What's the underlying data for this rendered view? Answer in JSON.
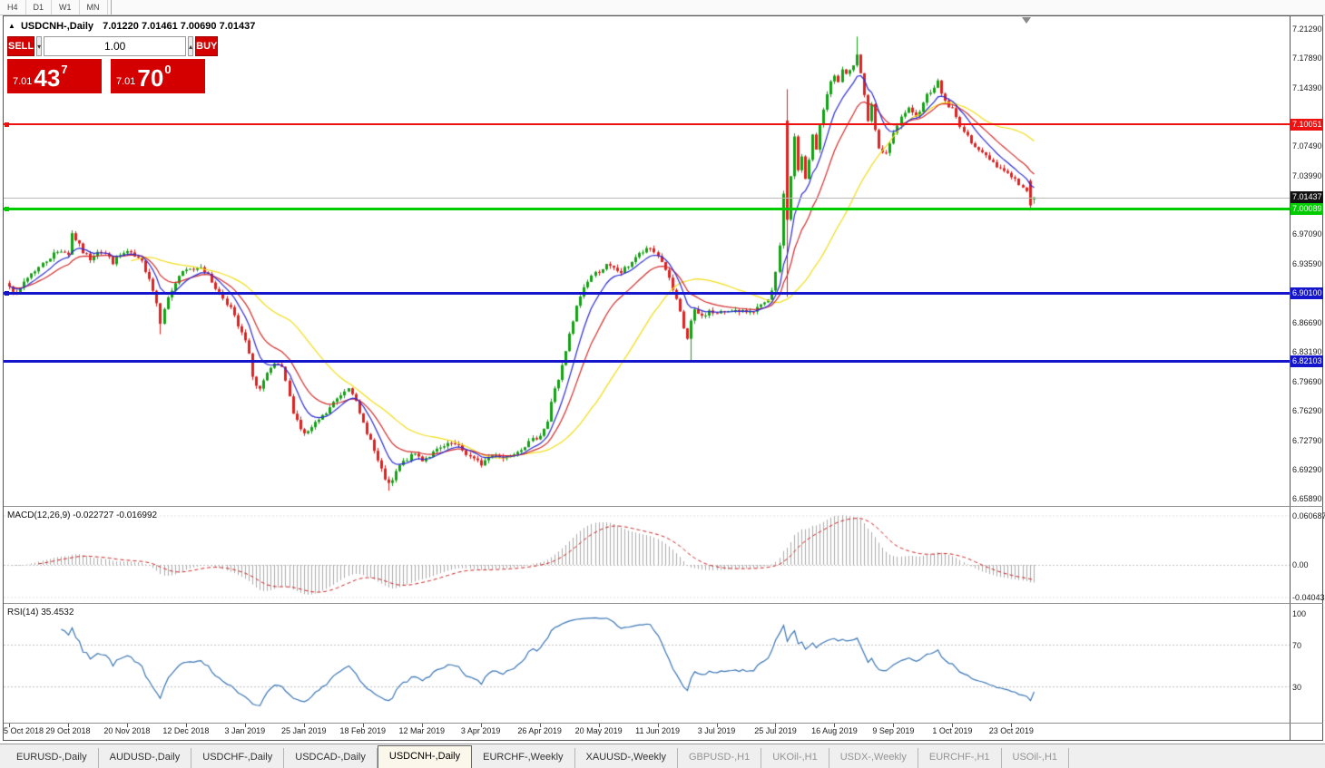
{
  "toolbar": {
    "timeframes": [
      "H4",
      "D1",
      "W1",
      "MN"
    ]
  },
  "chart_header": {
    "marker": "▲",
    "title": "USDCNH-,Daily",
    "ohlc": "7.01220 7.01461 7.00690 7.01437"
  },
  "icons": {
    "spin_up": "▴",
    "spin_down": "▾"
  },
  "trade_panel": {
    "sell_label": "SELL",
    "buy_label": "BUY",
    "volume": "1.00",
    "bid": {
      "small": "7.01",
      "big": "43",
      "sup": "7"
    },
    "ask": {
      "small": "7.01",
      "big": "70",
      "sup": "0"
    },
    "panel_color": "#d40000"
  },
  "price_axis": {
    "labels": [
      "7.21290",
      "7.17890",
      "7.14390",
      "7.07490",
      "7.03990",
      "6.97090",
      "6.93590",
      "6.86690",
      "6.83190",
      "6.79690",
      "6.76290",
      "6.72790",
      "6.69290",
      "6.65890"
    ],
    "tags": [
      {
        "text": "7.10051",
        "price": 7.10051,
        "bg": "#ee1111",
        "fg": "#ffffff"
      },
      {
        "text": "7.01437",
        "price": 7.01437,
        "bg": "#111111",
        "fg": "#ffffff"
      },
      {
        "text": "7.00089",
        "price": 7.00089,
        "bg": "#00cc00",
        "fg": "#ffffff"
      },
      {
        "text": "6.90100",
        "price": 6.901,
        "bg": "#1515cc",
        "fg": "#ffffff"
      },
      {
        "text": "6.82103",
        "price": 6.82103,
        "bg": "#1515cc",
        "fg": "#ffffff"
      }
    ]
  },
  "hlines": [
    {
      "price": 7.10051,
      "color": "#ee1111",
      "thickness": 2,
      "handle": true
    },
    {
      "price": 7.00089,
      "color": "#00cc00",
      "thickness": 3,
      "handle": true
    },
    {
      "price": 6.901,
      "color": "#1515cc",
      "thickness": 3,
      "handle": true
    },
    {
      "price": 6.82103,
      "color": "#1515cc",
      "thickness": 3,
      "handle": false
    }
  ],
  "bid_line": {
    "price": 7.01437,
    "color": "#b9b9b9"
  },
  "time_axis": {
    "labels": [
      "5 Oct 2018",
      "29 Oct 2018",
      "20 Nov 2018",
      "12 Dec 2018",
      "3 Jan 2019",
      "25 Jan 2019",
      "18 Feb 2019",
      "12 Mar 2019",
      "3 Apr 2019",
      "26 Apr 2019",
      "20 May 2019",
      "11 Jun 2019",
      "3 Jul 2019",
      "25 Jul 2019",
      "16 Aug 2019",
      "9 Sep 2019",
      "1 Oct 2019",
      "23 Oct 2019"
    ]
  },
  "macd_panel": {
    "label": "MACD(12,26,9) -0.022727 -0.016992",
    "axis_labels": [
      "0.060687",
      "0.00",
      "-0.040435"
    ],
    "max": 0.060687,
    "min": -0.040435
  },
  "rsi_panel": {
    "label": "RSI(14) 35.4532",
    "axis_labels": [
      "100",
      "70",
      "30"
    ],
    "levels": [
      70,
      30
    ],
    "value": 35.4532
  },
  "tabs": [
    {
      "label": "EURUSD-,Daily",
      "active": false,
      "muted": false
    },
    {
      "label": "AUDUSD-,Daily",
      "active": false,
      "muted": false
    },
    {
      "label": "USDCHF-,Daily",
      "active": false,
      "muted": false
    },
    {
      "label": "USDCAD-,Daily",
      "active": false,
      "muted": false
    },
    {
      "label": "USDCNH-,Daily",
      "active": true,
      "muted": false
    },
    {
      "label": "EURCHF-,Weekly",
      "active": false,
      "muted": false
    },
    {
      "label": "XAUUSD-,Weekly",
      "active": false,
      "muted": false
    },
    {
      "label": "GBPUSD-,H1",
      "active": false,
      "muted": true
    },
    {
      "label": "UKOil-,H1",
      "active": false,
      "muted": true
    },
    {
      "label": "USDX-,Weekly",
      "active": false,
      "muted": true
    },
    {
      "label": "EURCHF-,H1",
      "active": false,
      "muted": true
    },
    {
      "label": "USOil-,H1",
      "active": false,
      "muted": true
    }
  ],
  "chart_data": {
    "type": "candlestick",
    "symbol": "USDCNH-",
    "timeframe": "Daily",
    "current_ohlc": {
      "open": 7.0122,
      "high": 7.01461,
      "low": 7.0069,
      "close": 7.01437
    },
    "y_axis": {
      "top": 7.2258,
      "bottom": 6.6515
    },
    "x_axis_start": "5 Oct 2018",
    "x_axis_end": "23 Oct 2019",
    "num_candles": 279,
    "colors": {
      "up": "#16a016",
      "down": "#dd2222",
      "ma_fast": "#2b2bd5",
      "ma_mid": "#d52b2b",
      "ma_slow": "#f2de18",
      "macd_hist": "#ababab",
      "macd_signal": "#cc2222",
      "rsi": "#3b76b5",
      "level_red": "#ee1111",
      "level_green": "#00cc00",
      "level_blue": "#1515cc"
    },
    "moving_averages": [
      {
        "type": "ema",
        "period": 8
      },
      {
        "type": "ema",
        "period": 16
      },
      {
        "type": "sma",
        "period": 34
      }
    ],
    "indicators": {
      "macd": {
        "params": [
          12,
          26,
          9
        ],
        "current_main": -0.022727,
        "current_signal": -0.016992
      },
      "rsi": {
        "period": 14,
        "current": 35.4532
      }
    },
    "support_resistance_levels": [
      7.10051,
      7.00089,
      6.901,
      6.82103
    ],
    "noise_amplitude": 0.0055,
    "seed": 7,
    "close_anchors": [
      [
        0,
        6.912
      ],
      [
        2,
        6.898
      ],
      [
        4,
        6.915
      ],
      [
        6,
        6.925
      ],
      [
        8,
        6.932
      ],
      [
        10,
        6.94
      ],
      [
        12,
        6.948
      ],
      [
        14,
        6.952
      ],
      [
        16,
        6.948
      ],
      [
        17,
        6.972
      ],
      [
        18,
        6.965
      ],
      [
        20,
        6.95
      ],
      [
        22,
        6.942
      ],
      [
        24,
        6.952
      ],
      [
        26,
        6.948
      ],
      [
        28,
        6.938
      ],
      [
        30,
        6.946
      ],
      [
        32,
        6.95
      ],
      [
        34,
        6.944
      ],
      [
        36,
        6.938
      ],
      [
        38,
        6.92
      ],
      [
        40,
        6.89
      ],
      [
        41,
        6.868
      ],
      [
        42,
        6.885
      ],
      [
        44,
        6.905
      ],
      [
        46,
        6.922
      ],
      [
        48,
        6.928
      ],
      [
        50,
        6.93
      ],
      [
        52,
        6.934
      ],
      [
        54,
        6.922
      ],
      [
        56,
        6.908
      ],
      [
        58,
        6.896
      ],
      [
        60,
        6.884
      ],
      [
        62,
        6.862
      ],
      [
        64,
        6.845
      ],
      [
        65,
        6.828
      ],
      [
        66,
        6.805
      ],
      [
        67,
        6.792
      ],
      [
        68,
        6.788
      ],
      [
        70,
        6.805
      ],
      [
        72,
        6.818
      ],
      [
        74,
        6.812
      ],
      [
        75,
        6.798
      ],
      [
        76,
        6.778
      ],
      [
        77,
        6.762
      ],
      [
        78,
        6.752
      ],
      [
        79,
        6.742
      ],
      [
        80,
        6.735
      ],
      [
        82,
        6.742
      ],
      [
        84,
        6.752
      ],
      [
        86,
        6.76
      ],
      [
        88,
        6.772
      ],
      [
        90,
        6.782
      ],
      [
        92,
        6.792
      ],
      [
        93,
        6.785
      ],
      [
        94,
        6.772
      ],
      [
        95,
        6.758
      ],
      [
        96,
        6.748
      ],
      [
        97,
        6.738
      ],
      [
        98,
        6.728
      ],
      [
        99,
        6.715
      ],
      [
        100,
        6.703
      ],
      [
        101,
        6.692
      ],
      [
        102,
        6.683
      ],
      [
        103,
        6.675
      ],
      [
        104,
        6.68
      ],
      [
        105,
        6.69
      ],
      [
        106,
        6.698
      ],
      [
        108,
        6.706
      ],
      [
        110,
        6.712
      ],
      [
        112,
        6.705
      ],
      [
        114,
        6.71
      ],
      [
        116,
        6.716
      ],
      [
        118,
        6.72
      ],
      [
        120,
        6.724
      ],
      [
        122,
        6.72
      ],
      [
        124,
        6.712
      ],
      [
        126,
        6.705
      ],
      [
        128,
        6.7
      ],
      [
        130,
        6.708
      ],
      [
        132,
        6.712
      ],
      [
        134,
        6.707
      ],
      [
        136,
        6.712
      ],
      [
        138,
        6.716
      ],
      [
        140,
        6.722
      ],
      [
        142,
        6.728
      ],
      [
        144,
        6.735
      ],
      [
        145,
        6.742
      ],
      [
        146,
        6.75
      ],
      [
        147,
        6.772
      ],
      [
        148,
        6.79
      ],
      [
        149,
        6.8
      ],
      [
        150,
        6.815
      ],
      [
        151,
        6.832
      ],
      [
        152,
        6.852
      ],
      [
        153,
        6.868
      ],
      [
        154,
        6.885
      ],
      [
        155,
        6.898
      ],
      [
        156,
        6.908
      ],
      [
        157,
        6.916
      ],
      [
        158,
        6.922
      ],
      [
        160,
        6.928
      ],
      [
        162,
        6.934
      ],
      [
        164,
        6.93
      ],
      [
        166,
        6.926
      ],
      [
        168,
        6.934
      ],
      [
        170,
        6.944
      ],
      [
        172,
        6.95
      ],
      [
        174,
        6.954
      ],
      [
        176,
        6.946
      ],
      [
        178,
        6.93
      ],
      [
        180,
        6.905
      ],
      [
        181,
        6.892
      ],
      [
        182,
        6.878
      ],
      [
        183,
        6.86
      ],
      [
        184,
        6.848
      ],
      [
        185,
        6.868
      ],
      [
        186,
        6.88
      ],
      [
        188,
        6.874
      ],
      [
        190,
        6.88
      ],
      [
        192,
        6.877
      ],
      [
        194,
        6.88
      ],
      [
        196,
        6.883
      ],
      [
        198,
        6.878
      ],
      [
        200,
        6.88
      ],
      [
        202,
        6.882
      ],
      [
        204,
        6.886
      ],
      [
        206,
        6.892
      ],
      [
        207,
        6.902
      ],
      [
        208,
        6.928
      ],
      [
        209,
        6.955
      ],
      [
        210,
        7.02
      ],
      [
        211,
        6.988
      ],
      [
        212,
        7.04
      ],
      [
        213,
        7.085
      ],
      [
        214,
        7.045
      ],
      [
        215,
        7.062
      ],
      [
        216,
        7.035
      ],
      [
        217,
        7.058
      ],
      [
        218,
        7.088
      ],
      [
        219,
        7.072
      ],
      [
        220,
        7.098
      ],
      [
        221,
        7.118
      ],
      [
        222,
        7.138
      ],
      [
        223,
        7.15
      ],
      [
        224,
        7.158
      ],
      [
        225,
        7.15
      ],
      [
        226,
        7.165
      ],
      [
        227,
        7.158
      ],
      [
        228,
        7.162
      ],
      [
        229,
        7.172
      ],
      [
        230,
        7.185
      ],
      [
        231,
        7.162
      ],
      [
        232,
        7.135
      ],
      [
        233,
        7.105
      ],
      [
        234,
        7.122
      ],
      [
        235,
        7.092
      ],
      [
        236,
        7.072
      ],
      [
        237,
        7.065
      ],
      [
        238,
        7.068
      ],
      [
        239,
        7.078
      ],
      [
        240,
        7.088
      ],
      [
        241,
        7.098
      ],
      [
        242,
        7.108
      ],
      [
        243,
        7.115
      ],
      [
        244,
        7.118
      ],
      [
        245,
        7.112
      ],
      [
        246,
        7.108
      ],
      [
        247,
        7.118
      ],
      [
        248,
        7.128
      ],
      [
        249,
        7.135
      ],
      [
        250,
        7.14
      ],
      [
        251,
        7.146
      ],
      [
        252,
        7.15
      ],
      [
        253,
        7.138
      ],
      [
        254,
        7.128
      ],
      [
        255,
        7.122
      ],
      [
        256,
        7.118
      ],
      [
        257,
        7.108
      ],
      [
        258,
        7.1
      ],
      [
        259,
        7.092
      ],
      [
        260,
        7.085
      ],
      [
        262,
        7.076
      ],
      [
        264,
        7.066
      ],
      [
        266,
        7.06
      ],
      [
        268,
        7.052
      ],
      [
        270,
        7.046
      ],
      [
        272,
        7.04
      ],
      [
        274,
        7.03
      ],
      [
        276,
        7.02
      ],
      [
        277,
        7.014
      ],
      [
        278,
        7.014
      ]
    ],
    "candle_overrides": [
      {
        "i": 41,
        "l": 6.853
      },
      {
        "i": 103,
        "l": 6.6685
      },
      {
        "i": 185,
        "l": 6.8215
      },
      {
        "i": 211,
        "o": 7.105,
        "h": 7.142,
        "l": 6.897,
        "c": 6.988
      },
      {
        "i": 230,
        "h": 7.204
      },
      {
        "i": 277,
        "o": 7.034,
        "h": 7.036,
        "l": 6.9992,
        "c": 7.005
      },
      {
        "i": 278,
        "o": 7.0122,
        "h": 7.01461,
        "l": 7.0069,
        "c": 7.01437
      }
    ]
  }
}
